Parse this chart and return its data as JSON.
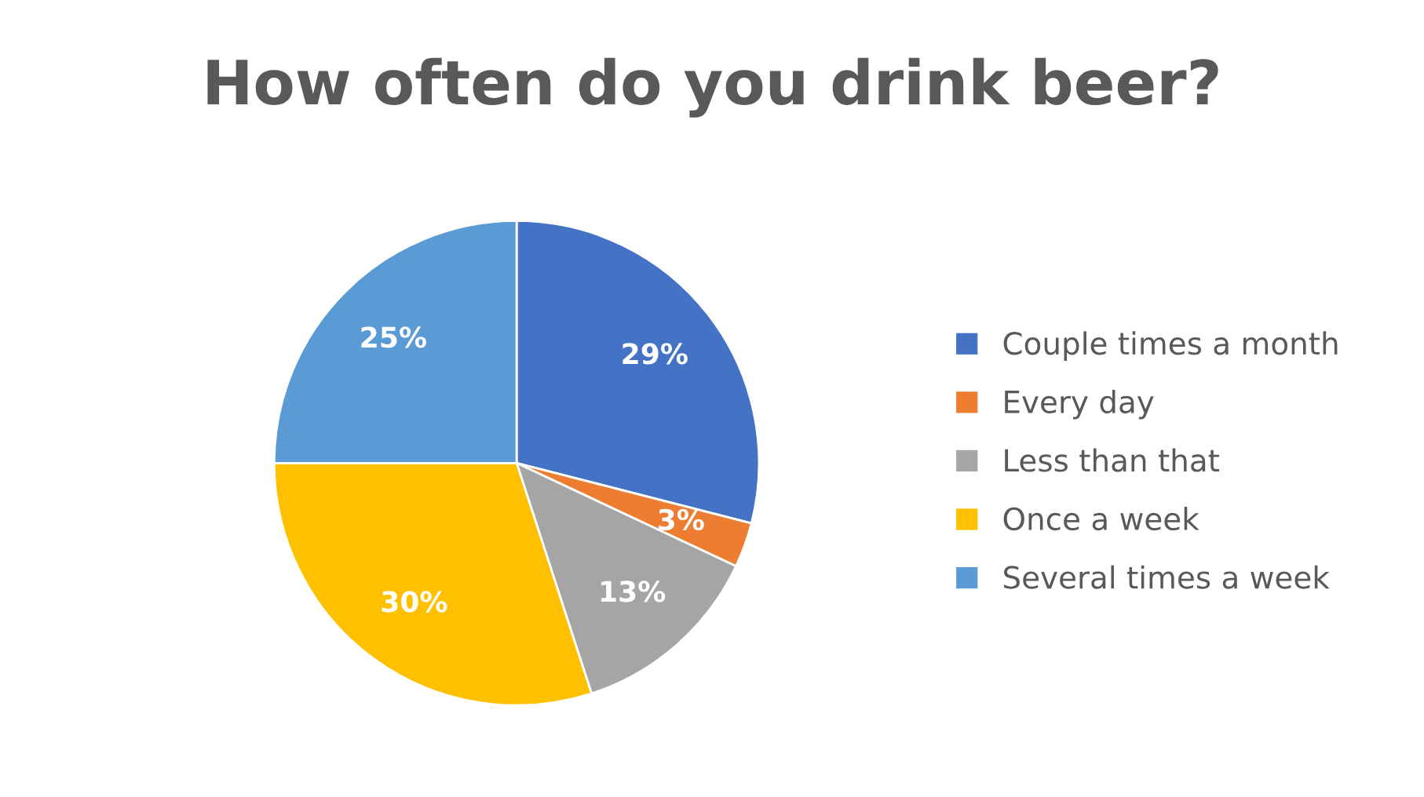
{
  "chart_data": {
    "type": "pie",
    "title": "How often do you drink beer?",
    "categories": [
      "Couple times a month",
      "Every day",
      "Less than that",
      "Once a week",
      "Several times a week"
    ],
    "values": [
      29,
      3,
      13,
      30,
      25
    ],
    "colors": [
      "#4472c4",
      "#ed7d31",
      "#a5a5a5",
      "#ffc000",
      "#5b9bd5"
    ],
    "value_labels": [
      "29%",
      "3%",
      "13%",
      "30%",
      "25%"
    ],
    "legend": "right"
  }
}
